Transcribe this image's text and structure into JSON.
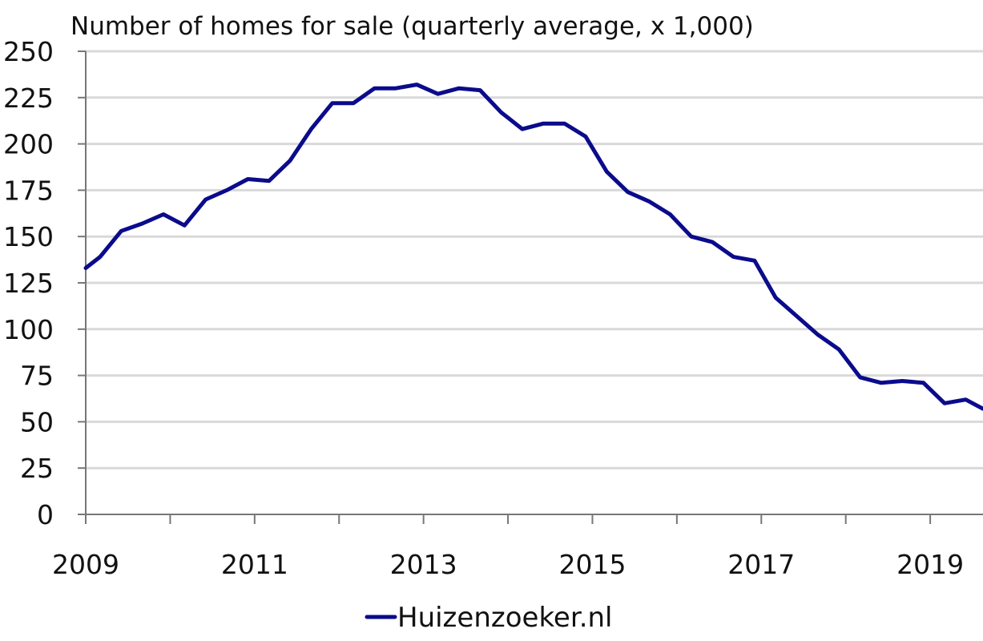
{
  "chart_data": {
    "type": "line",
    "title": "Number of homes for sale (quarterly average, x 1,000)",
    "xlabel": "",
    "ylabel": "",
    "xlim": [
      2009,
      2019.625
    ],
    "ylim": [
      0,
      250
    ],
    "grid": true,
    "legend_position": "bottom-center",
    "y_ticks": [
      0,
      25,
      50,
      75,
      100,
      125,
      150,
      175,
      200,
      225,
      250
    ],
    "x_tick_labels": [
      "2009",
      "2011",
      "2013",
      "2015",
      "2017",
      "2019"
    ],
    "x_tick_values": [
      2009,
      2011,
      2013,
      2015,
      2017,
      2019
    ],
    "series": [
      {
        "name": "Huizenzoeker.nl",
        "color": "#0B0B8C",
        "x": [
          2009,
          2009.17,
          2009.42,
          2009.67,
          2009.92,
          2010.17,
          2010.42,
          2010.67,
          2010.92,
          2011.17,
          2011.42,
          2011.67,
          2011.92,
          2012.17,
          2012.42,
          2012.67,
          2012.92,
          2013.17,
          2013.42,
          2013.67,
          2013.92,
          2014.17,
          2014.42,
          2014.67,
          2014.92,
          2015.17,
          2015.42,
          2015.67,
          2015.92,
          2016.17,
          2016.42,
          2016.67,
          2016.92,
          2017.17,
          2017.42,
          2017.67,
          2017.92,
          2018.17,
          2018.42,
          2018.67,
          2018.92,
          2019.17,
          2019.42,
          2019.625
        ],
        "y": [
          133,
          139,
          153,
          157,
          162,
          156,
          170,
          175,
          181,
          180,
          191,
          208,
          222,
          222,
          230,
          230,
          232,
          227,
          230,
          229,
          217,
          208,
          211,
          211,
          204,
          185,
          174,
          169,
          162,
          150,
          147,
          139,
          137,
          117,
          107,
          97,
          89,
          74,
          71,
          72,
          71,
          60,
          62,
          57
        ]
      }
    ]
  }
}
